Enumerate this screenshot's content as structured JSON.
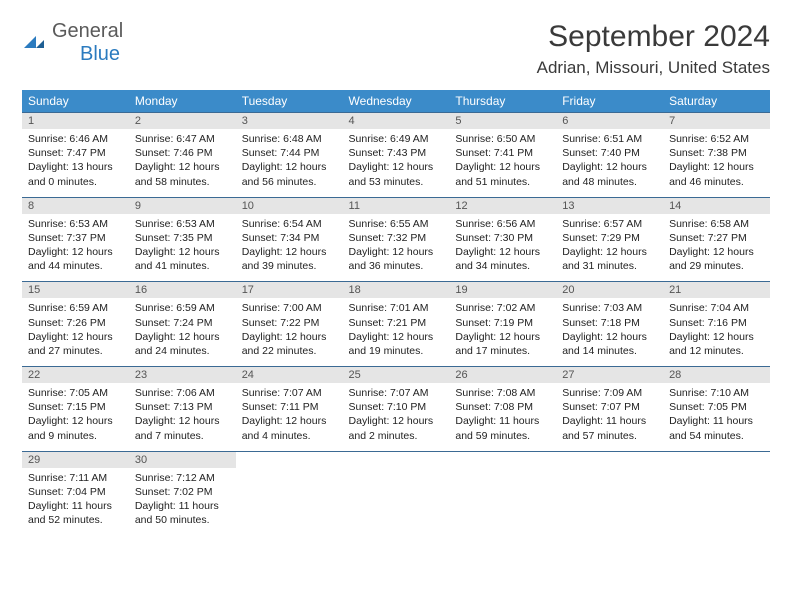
{
  "logo": {
    "general": "General",
    "blue": "Blue"
  },
  "title": "September 2024",
  "location": "Adrian, Missouri, United States",
  "colors": {
    "header_bg": "#3b8bc9",
    "header_text": "#ffffff",
    "daynum_bg": "#e5e5e5",
    "daynum_text": "#555555",
    "rule": "#3b6a94",
    "logo_gray": "#5a5a5a",
    "logo_blue": "#2b7bbf"
  },
  "dayNames": [
    "Sunday",
    "Monday",
    "Tuesday",
    "Wednesday",
    "Thursday",
    "Friday",
    "Saturday"
  ],
  "days": [
    {
      "n": "1",
      "sr": "6:46 AM",
      "ss": "7:47 PM",
      "dl": "13 hours and 0 minutes."
    },
    {
      "n": "2",
      "sr": "6:47 AM",
      "ss": "7:46 PM",
      "dl": "12 hours and 58 minutes."
    },
    {
      "n": "3",
      "sr": "6:48 AM",
      "ss": "7:44 PM",
      "dl": "12 hours and 56 minutes."
    },
    {
      "n": "4",
      "sr": "6:49 AM",
      "ss": "7:43 PM",
      "dl": "12 hours and 53 minutes."
    },
    {
      "n": "5",
      "sr": "6:50 AM",
      "ss": "7:41 PM",
      "dl": "12 hours and 51 minutes."
    },
    {
      "n": "6",
      "sr": "6:51 AM",
      "ss": "7:40 PM",
      "dl": "12 hours and 48 minutes."
    },
    {
      "n": "7",
      "sr": "6:52 AM",
      "ss": "7:38 PM",
      "dl": "12 hours and 46 minutes."
    },
    {
      "n": "8",
      "sr": "6:53 AM",
      "ss": "7:37 PM",
      "dl": "12 hours and 44 minutes."
    },
    {
      "n": "9",
      "sr": "6:53 AM",
      "ss": "7:35 PM",
      "dl": "12 hours and 41 minutes."
    },
    {
      "n": "10",
      "sr": "6:54 AM",
      "ss": "7:34 PM",
      "dl": "12 hours and 39 minutes."
    },
    {
      "n": "11",
      "sr": "6:55 AM",
      "ss": "7:32 PM",
      "dl": "12 hours and 36 minutes."
    },
    {
      "n": "12",
      "sr": "6:56 AM",
      "ss": "7:30 PM",
      "dl": "12 hours and 34 minutes."
    },
    {
      "n": "13",
      "sr": "6:57 AM",
      "ss": "7:29 PM",
      "dl": "12 hours and 31 minutes."
    },
    {
      "n": "14",
      "sr": "6:58 AM",
      "ss": "7:27 PM",
      "dl": "12 hours and 29 minutes."
    },
    {
      "n": "15",
      "sr": "6:59 AM",
      "ss": "7:26 PM",
      "dl": "12 hours and 27 minutes."
    },
    {
      "n": "16",
      "sr": "6:59 AM",
      "ss": "7:24 PM",
      "dl": "12 hours and 24 minutes."
    },
    {
      "n": "17",
      "sr": "7:00 AM",
      "ss": "7:22 PM",
      "dl": "12 hours and 22 minutes."
    },
    {
      "n": "18",
      "sr": "7:01 AM",
      "ss": "7:21 PM",
      "dl": "12 hours and 19 minutes."
    },
    {
      "n": "19",
      "sr": "7:02 AM",
      "ss": "7:19 PM",
      "dl": "12 hours and 17 minutes."
    },
    {
      "n": "20",
      "sr": "7:03 AM",
      "ss": "7:18 PM",
      "dl": "12 hours and 14 minutes."
    },
    {
      "n": "21",
      "sr": "7:04 AM",
      "ss": "7:16 PM",
      "dl": "12 hours and 12 minutes."
    },
    {
      "n": "22",
      "sr": "7:05 AM",
      "ss": "7:15 PM",
      "dl": "12 hours and 9 minutes."
    },
    {
      "n": "23",
      "sr": "7:06 AM",
      "ss": "7:13 PM",
      "dl": "12 hours and 7 minutes."
    },
    {
      "n": "24",
      "sr": "7:07 AM",
      "ss": "7:11 PM",
      "dl": "12 hours and 4 minutes."
    },
    {
      "n": "25",
      "sr": "7:07 AM",
      "ss": "7:10 PM",
      "dl": "12 hours and 2 minutes."
    },
    {
      "n": "26",
      "sr": "7:08 AM",
      "ss": "7:08 PM",
      "dl": "11 hours and 59 minutes."
    },
    {
      "n": "27",
      "sr": "7:09 AM",
      "ss": "7:07 PM",
      "dl": "11 hours and 57 minutes."
    },
    {
      "n": "28",
      "sr": "7:10 AM",
      "ss": "7:05 PM",
      "dl": "11 hours and 54 minutes."
    },
    {
      "n": "29",
      "sr": "7:11 AM",
      "ss": "7:04 PM",
      "dl": "11 hours and 52 minutes."
    },
    {
      "n": "30",
      "sr": "7:12 AM",
      "ss": "7:02 PM",
      "dl": "11 hours and 50 minutes."
    }
  ],
  "labels": {
    "sunrise": "Sunrise: ",
    "sunset": "Sunset: ",
    "daylight": "Daylight: "
  }
}
